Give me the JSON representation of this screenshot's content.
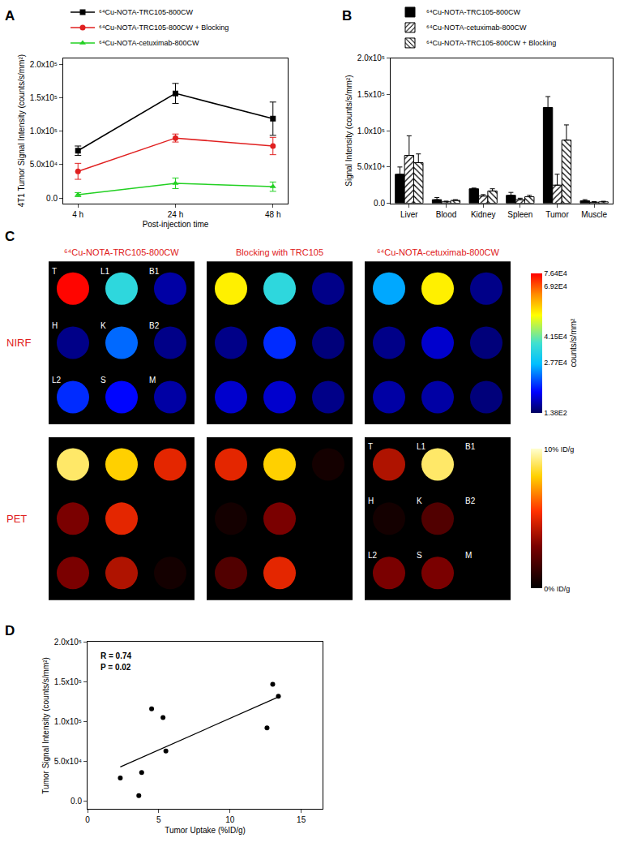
{
  "chart_data": [
    {
      "type": "line",
      "title": "A",
      "x_label": "Post-injection time",
      "y_label": "4T1 Tumor Signal Intensity (counts/s/mm²)",
      "categories": [
        "4 h",
        "24 h",
        "48 h"
      ],
      "series": [
        {
          "name": "⁶⁴Cu-NOTA-TRC105-800CW",
          "color": "#000000",
          "marker": "square",
          "line_style": "solid",
          "values": [
            71000,
            157000,
            119000
          ],
          "errors": [
            7000,
            15000,
            25000
          ]
        },
        {
          "name": "⁶⁴Cu-NOTA-TRC105-800CW + Blocking",
          "color": "#e02020",
          "marker": "circle",
          "line_style": "solid",
          "values": [
            40000,
            90000,
            78000
          ],
          "errors": [
            12000,
            6000,
            13000
          ]
        },
        {
          "name": "⁶⁴Cu-NOTA-cetuximab-800CW",
          "color": "#22d022",
          "marker": "triangle-up",
          "line_style": "solid",
          "values": [
            5000,
            22000,
            17000
          ],
          "errors": [
            3000,
            8000,
            7000
          ]
        }
      ],
      "ylim": [
        -8000,
        210000
      ],
      "yticks": [
        {
          "value": 0,
          "label": "0.0"
        },
        {
          "value": 50000,
          "label": "5.0x10⁴"
        },
        {
          "value": 100000,
          "label": "1.0x10⁵"
        },
        {
          "value": 150000,
          "label": "1.5x10⁵"
        },
        {
          "value": 200000,
          "label": "2.0x10⁵"
        }
      ],
      "grid": false,
      "legend": "top"
    },
    {
      "type": "bar",
      "title": "B",
      "y_label": "Signal Intensity (counts/s/mm²)",
      "categories": [
        "Liver",
        "Blood",
        "Kidney",
        "Spleen",
        "Tumor",
        "Muscle"
      ],
      "series": [
        {
          "name": "⁶⁴Cu-NOTA-TRC105-800CW",
          "color": "#000000",
          "marker": "solid",
          "values": [
            40000,
            5000,
            20000,
            11000,
            132000,
            3500
          ],
          "errors": [
            10000,
            3000,
            1000,
            4000,
            15000,
            1500
          ]
        },
        {
          "name": "⁶⁴Cu-NOTA-cetuximab-800CW",
          "color": "#ffffff",
          "marker": "hatch_forward",
          "values": [
            66000,
            2000,
            10000,
            5000,
            25000,
            1500
          ],
          "errors": [
            27000,
            1000,
            2000,
            2000,
            15000,
            800
          ]
        },
        {
          "name": "⁶⁴Cu-NOTA-TRC105-800CW + Blocking",
          "color": "#ffffff",
          "marker": "hatch_backward",
          "values": [
            56000,
            4000,
            17000,
            9000,
            87000,
            2000
          ],
          "errors": [
            12000,
            1000,
            3000,
            2000,
            21000,
            800
          ]
        }
      ],
      "ylim": [
        0,
        200000
      ],
      "yticks": [
        {
          "value": 0,
          "label": "0.0"
        },
        {
          "value": 50000,
          "label": "5.0x10⁴"
        },
        {
          "value": 100000,
          "label": "1.0x10⁵"
        },
        {
          "value": 150000,
          "label": "1.5x10⁵"
        },
        {
          "value": 200000,
          "label": "2.0x10⁵"
        }
      ],
      "grid": false,
      "legend": "top"
    },
    {
      "type": "image_grid",
      "title": "C",
      "columns": [
        "⁶⁴Cu-NOTA-TRC105-800CW",
        "Blocking with TRC105",
        "⁶⁴Cu-NOTA-cetuximab-800CW"
      ],
      "rows": [
        {
          "name": "NIRF",
          "colorbar": {
            "range": [
              138,
              76400
            ],
            "title": "counts/s/mm²",
            "ticks": [
              {
                "value": 138,
                "label": "1.38E2"
              },
              {
                "value": 27700,
                "label": "2.77E4"
              },
              {
                "value": 41500,
                "label": "4.15E4"
              },
              {
                "value": 69200,
                "label": "6.92E4"
              },
              {
                "value": 76400,
                "label": "7.64E4"
              }
            ]
          },
          "images": [
            {
              "values": [
                76000,
                35000,
                5000,
                3000,
                20000,
                3000,
                15000,
                12000,
                5000
              ],
              "labels": [
                "T",
                "L1",
                "B1",
                "H",
                "K",
                "B2",
                "L2",
                "S",
                "M"
              ]
            },
            {
              "values": [
                55000,
                35000,
                3000,
                3000,
                15000,
                2000,
                8000,
                8000,
                3000
              ]
            },
            {
              "values": [
                25000,
                55000,
                3000,
                3000,
                8000,
                2000,
                5000,
                5000,
                2000
              ]
            }
          ]
        },
        {
          "name": "PET",
          "colorbar": {
            "range": [
              0,
              10
            ],
            "ticks": [
              {
                "value": 0,
                "label": "0% ID/g"
              },
              {
                "value": 10,
                "label": "10% ID/g"
              }
            ]
          },
          "images": [
            {
              "values": [
                9,
                8,
                5,
                3,
                5,
                0,
                3,
                4,
                0.5
              ]
            },
            {
              "values": [
                5,
                8,
                0.5,
                0.5,
                3,
                0,
                2,
                5,
                0
              ]
            },
            {
              "values": [
                4,
                9,
                0,
                0.5,
                2,
                0,
                3,
                3,
                0
              ],
              "labels": [
                "T",
                "L1",
                "B1",
                "H",
                "K",
                "B2",
                "L2",
                "S",
                "M"
              ]
            }
          ]
        }
      ]
    },
    {
      "type": "scatter",
      "title": "D",
      "x_label": "Tumor Uptake (%ID/g)",
      "y_label": "Tumor Signal Intensity (counts/s/mm²)",
      "annotations": [
        "R = 0.74",
        "P = 0.02"
      ],
      "series": [
        {
          "type": "scatter",
          "marker": "circle",
          "color": "#000000",
          "x": [
            2.3,
            3.6,
            3.8,
            4.5,
            5.3,
            5.5,
            12.6,
            13.0,
            13.4
          ],
          "values": [
            29000,
            7000,
            36000,
            116000,
            105000,
            63000,
            92000,
            147000,
            132000
          ]
        },
        {
          "type": "line",
          "line_style": "solid",
          "color": "#000000",
          "x": [
            2.3,
            13.4
          ],
          "values": [
            43000,
            131000
          ]
        }
      ],
      "xlim": [
        0,
        16.5
      ],
      "xticks": [
        0,
        5,
        10,
        15
      ],
      "ylim": [
        -10000,
        200000
      ],
      "yticks": [
        {
          "value": 0,
          "label": "0.0"
        },
        {
          "value": 50000,
          "label": "5.0x10⁴"
        },
        {
          "value": 100000,
          "label": "1.0x10⁵"
        },
        {
          "value": 150000,
          "label": "1.5x10⁵"
        },
        {
          "value": 200000,
          "label": "2.0x10⁵"
        }
      ],
      "grid": false
    }
  ]
}
